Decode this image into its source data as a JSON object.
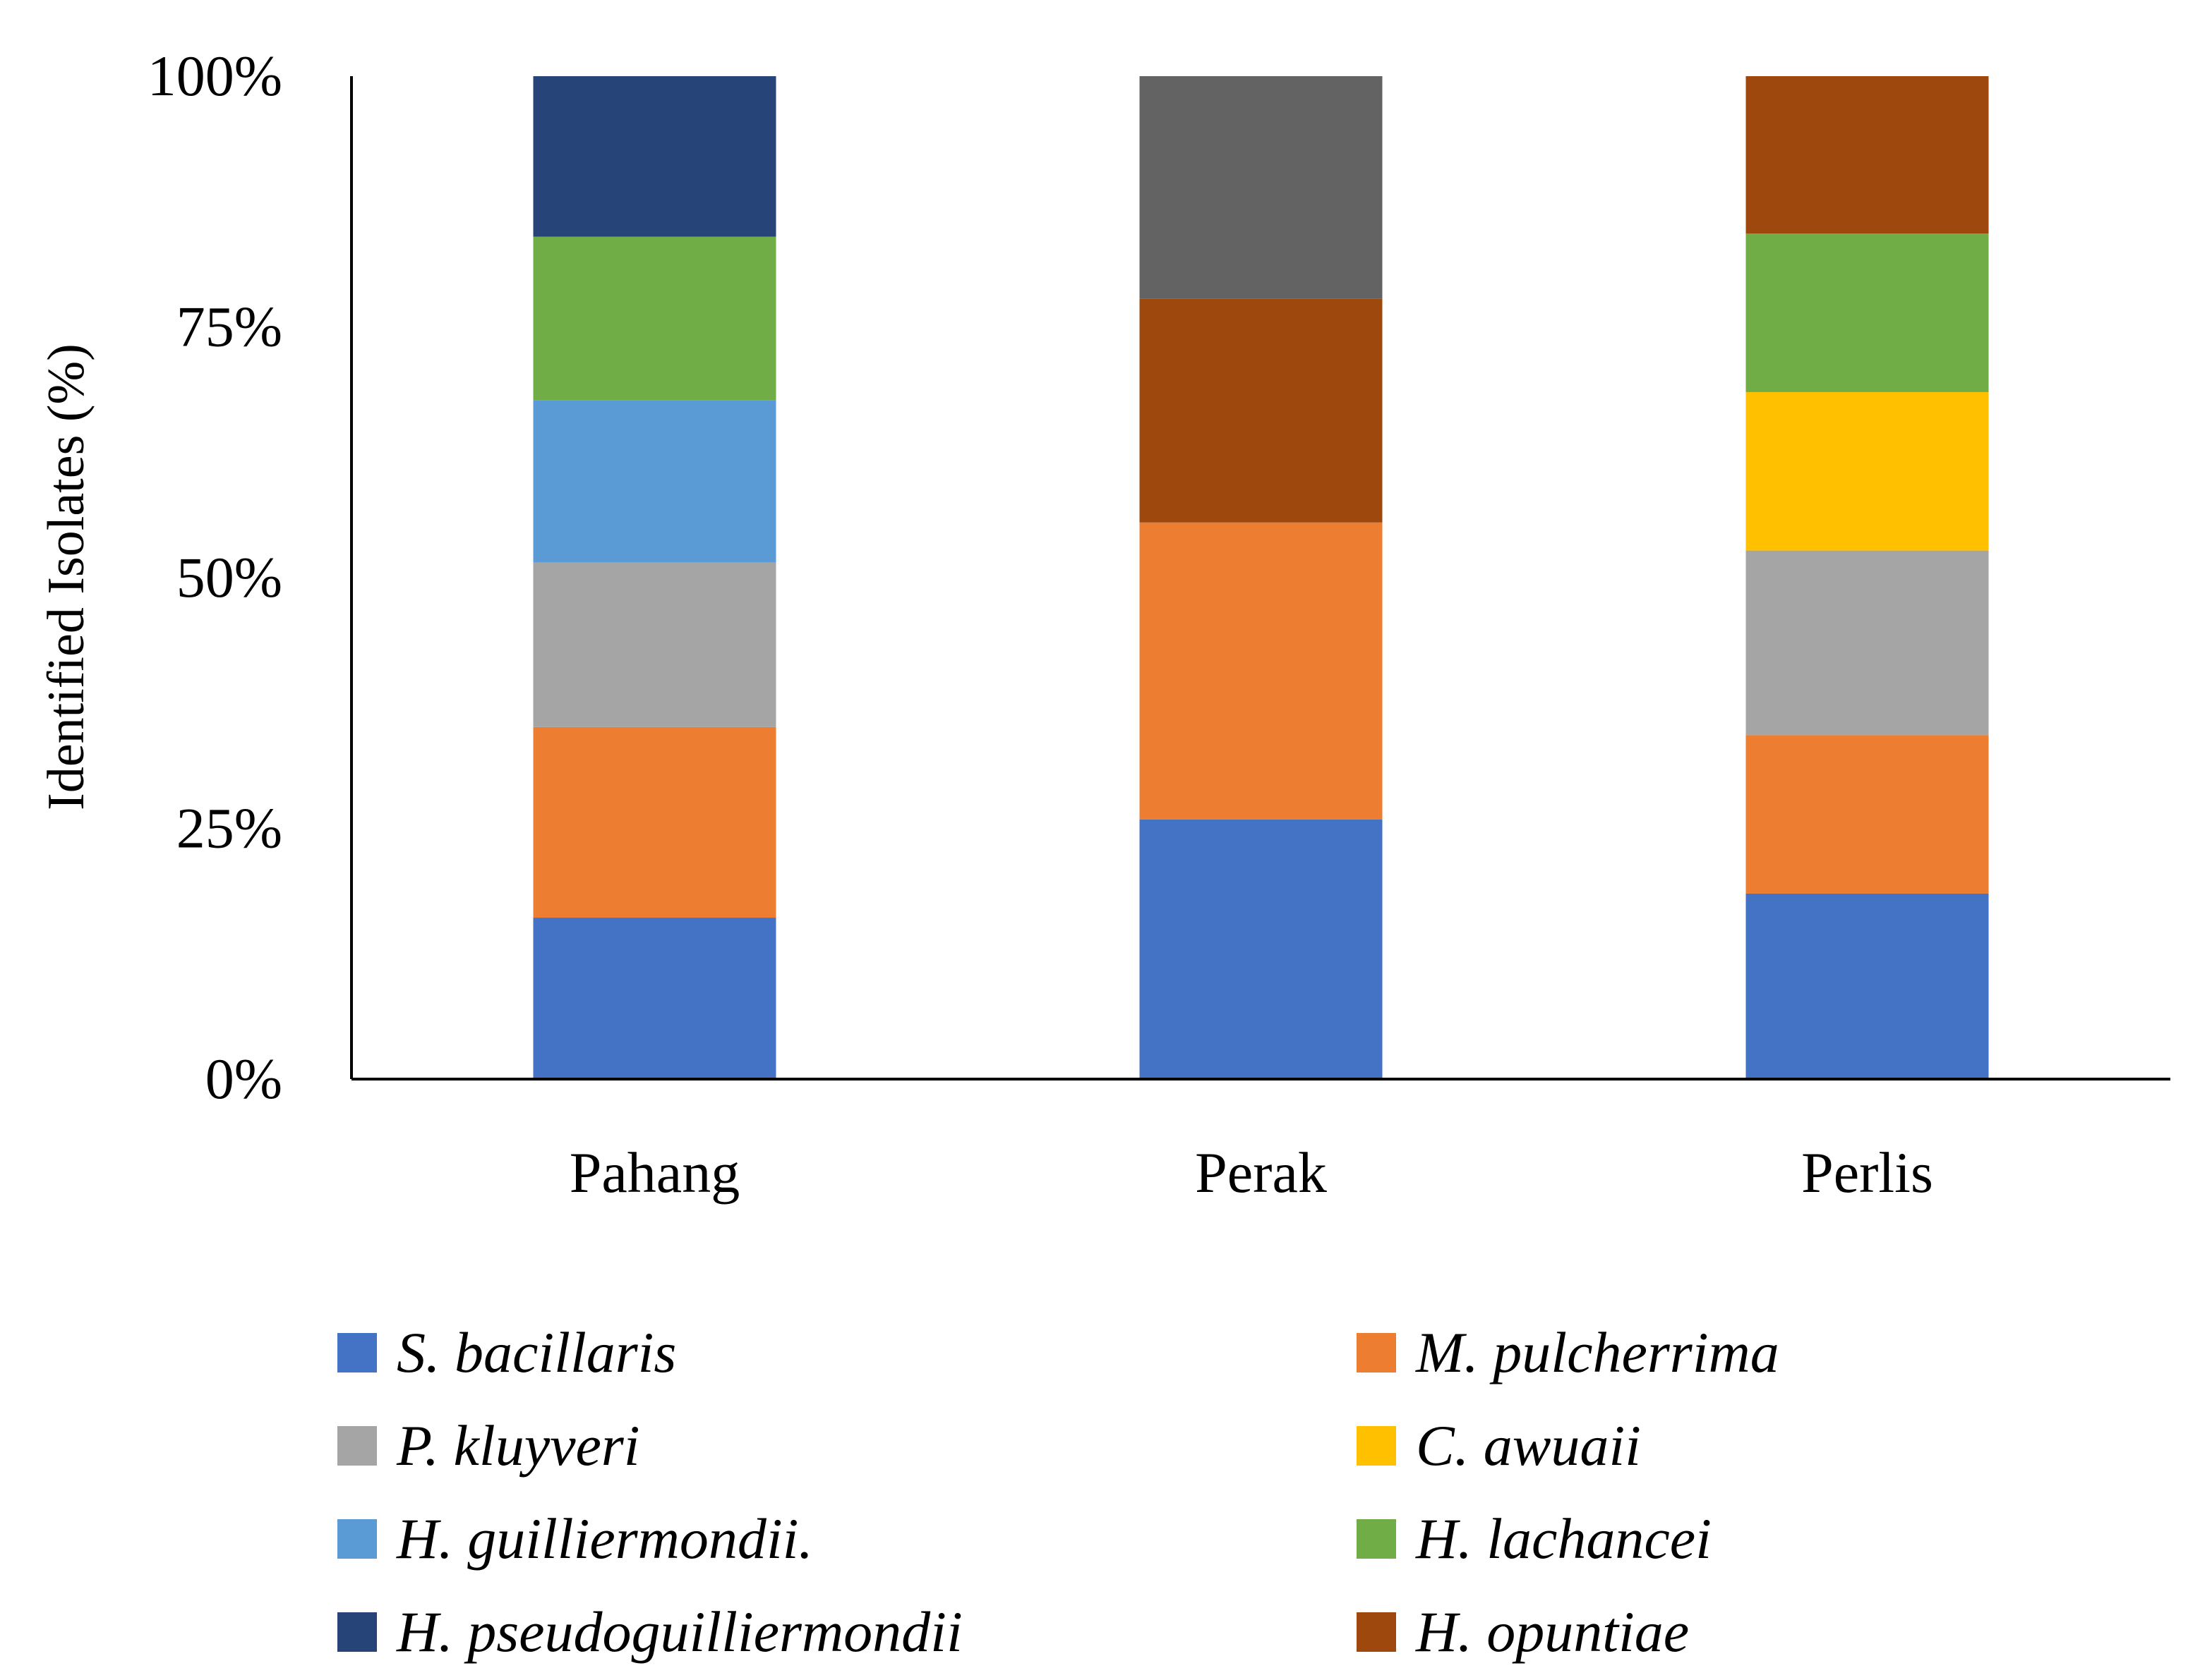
{
  "chart_data": {
    "type": "bar",
    "stacked": true,
    "normalized": true,
    "title": "",
    "xlabel": "",
    "ylabel": "Identified Isolates (%)",
    "ylim": [
      0,
      100
    ],
    "yticks": [
      "0%",
      "25%",
      "50%",
      "75%",
      "100%"
    ],
    "ytick_values": [
      0,
      25,
      50,
      75,
      100
    ],
    "categories": [
      "Pahang",
      "Perak",
      "Perlis"
    ],
    "legend_position": "bottom",
    "series": [
      {
        "name": "S. bacillaris",
        "color": "#4472C4",
        "values": [
          16.1,
          25.9,
          18.5
        ]
      },
      {
        "name": "M. pulcherrima",
        "color": "#ED7D31",
        "values": [
          19.0,
          29.6,
          15.8
        ]
      },
      {
        "name": "P. kluyveri",
        "color": "#A5A5A5",
        "values": [
          16.4,
          0,
          18.4
        ]
      },
      {
        "name": "C. awuaii",
        "color": "#FFC000",
        "values": [
          0,
          0,
          15.8
        ]
      },
      {
        "name": "H. guilliermondii.",
        "color": "#5B9BD5",
        "values": [
          16.2,
          0,
          0
        ]
      },
      {
        "name": "H. lachancei",
        "color": "#70AD47",
        "values": [
          16.3,
          0,
          15.8
        ]
      },
      {
        "name": "H. pseudoguilliermondii",
        "color": "#264478",
        "values": [
          16.0,
          0,
          0
        ]
      },
      {
        "name": "H. opuntiae",
        "color": "#9E480E",
        "values": [
          0,
          22.3,
          15.7
        ]
      },
      {
        "name": "",
        "color": "#636363",
        "values": [
          0,
          22.2,
          0
        ]
      }
    ],
    "legend": [
      {
        "label": "S. bacillaris",
        "color": "#4472C4"
      },
      {
        "label": "M. pulcherrima",
        "color": "#ED7D31"
      },
      {
        "label": "P. kluyveri",
        "color": "#A5A5A5"
      },
      {
        "label": "C. awuaii",
        "color": "#FFC000"
      },
      {
        "label": "H. guilliermondii.",
        "color": "#5B9BD5"
      },
      {
        "label": "H. lachancei",
        "color": "#70AD47"
      },
      {
        "label": "H. pseudoguilliermondii",
        "color": "#264478"
      },
      {
        "label": "H. opuntiae",
        "color": "#9E480E"
      }
    ]
  }
}
